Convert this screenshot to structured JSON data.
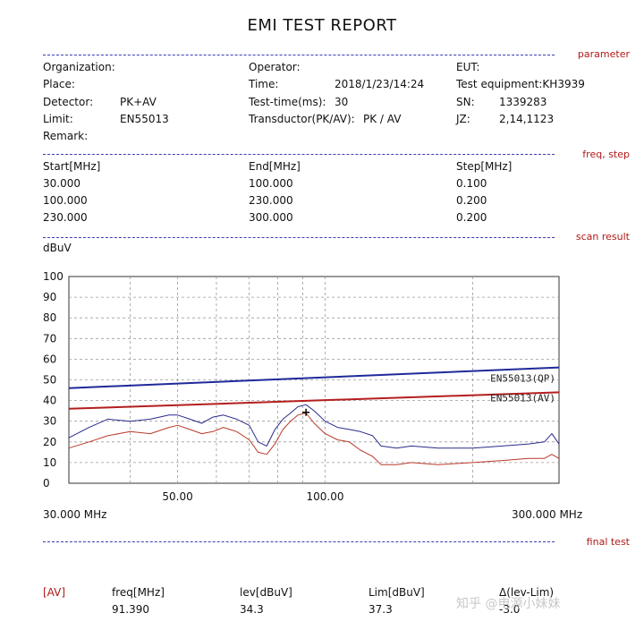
{
  "title": "EMI TEST REPORT",
  "sections": {
    "parameter": "parameter",
    "freq_step": "freq, step",
    "scan_result": "scan result",
    "final_test": "final test"
  },
  "params": {
    "organization_label": "Organization:",
    "place_label": "Place:",
    "detector_label": "Detector:",
    "detector_value": "PK+AV",
    "limit_label": "Limit:",
    "limit_value": "EN55013",
    "remark_label": "Remark:",
    "operator_label": "Operator:",
    "time_label": "Time:",
    "time_value": "2018/1/23/14:24",
    "testtime_label": "Test-time(ms):",
    "testtime_value": "30",
    "transductor_label": "Transductor(PK/AV):",
    "transductor_value": "PK  /  AV",
    "eut_label": "EUT:",
    "equipment_label": "Test equipment:KH3939",
    "sn_label": "SN:",
    "sn_value": "1339283",
    "jz_label": "JZ:",
    "jz_value": "2,14,1123"
  },
  "freq_table": {
    "headers": [
      "Start[MHz]",
      "End[MHz]",
      "Step[MHz]"
    ],
    "rows": [
      [
        "30.000",
        "100.000",
        "0.100"
      ],
      [
        "100.000",
        "230.000",
        "0.200"
      ],
      [
        "230.000",
        "300.000",
        "0.200"
      ]
    ]
  },
  "final": {
    "mode": "[AV]",
    "headers": [
      "freq[MHz]",
      "lev[dBuV]",
      "Lim[dBuV]",
      "Δ(lev-Lim)"
    ],
    "values": [
      "91.390",
      "34.3",
      "37.3",
      "-3.0"
    ]
  },
  "watermark": "知乎 @电源小妹妹",
  "colors": {
    "qp_limit": "#1f2a9a",
    "av_limit": "#b41e1e",
    "pk_trace": "#2a2a8c",
    "av_trace": "#b83a2a",
    "section": "#b01818"
  },
  "chart_data": {
    "type": "line",
    "ylabel": "dBuV",
    "x_scale": "log",
    "xlim": [
      30,
      300
    ],
    "ylim": [
      0,
      100
    ],
    "yticks": [
      0,
      10,
      20,
      30,
      40,
      50,
      60,
      70,
      80,
      90,
      100
    ],
    "xtick_labels": [
      {
        "x": 50,
        "label": "50.00"
      },
      {
        "x": 100,
        "label": "100.00"
      }
    ],
    "x_min_label": "30.000 MHz",
    "x_max_label": "300.000 MHz",
    "grid": true,
    "marker": {
      "x": 91.39,
      "y": 34.3,
      "symbol": "+"
    },
    "series": [
      {
        "name": "EN55013(QP)",
        "kind": "limit",
        "x": [
          30,
          300
        ],
        "y": [
          46.0,
          56.0
        ]
      },
      {
        "name": "EN55013(AV)",
        "kind": "limit",
        "x": [
          30,
          300
        ],
        "y": [
          36.0,
          44.0
        ]
      },
      {
        "kind": "peak",
        "x": [
          30,
          33,
          36,
          40,
          44,
          48,
          50,
          53,
          56,
          59,
          62,
          66,
          70,
          73,
          76,
          79,
          82,
          85,
          88,
          91.4,
          95,
          100,
          106,
          112,
          118,
          125,
          130,
          140,
          150,
          170,
          200,
          230,
          260,
          280,
          290,
          300
        ],
        "y": [
          22,
          27,
          31,
          30,
          31,
          33,
          33,
          31,
          29,
          32,
          33,
          31,
          28,
          20,
          18,
          26,
          31,
          34,
          37,
          38,
          35,
          30,
          27,
          26,
          25,
          23,
          18,
          17,
          18,
          17,
          17,
          18,
          19,
          20,
          24,
          19
        ]
      },
      {
        "kind": "average",
        "x": [
          30,
          33,
          36,
          40,
          44,
          48,
          50,
          53,
          56,
          59,
          62,
          66,
          70,
          73,
          76,
          79,
          82,
          85,
          88,
          91.4,
          95,
          100,
          106,
          112,
          118,
          125,
          130,
          140,
          150,
          170,
          200,
          230,
          260,
          280,
          290,
          300
        ],
        "y": [
          17,
          20,
          23,
          25,
          24,
          27,
          28,
          26,
          24,
          25,
          27,
          25,
          21,
          15,
          14,
          19,
          26,
          30,
          33,
          34,
          29,
          24,
          21,
          20,
          16,
          13,
          9,
          9,
          10,
          9,
          10,
          11,
          12,
          12,
          14,
          12
        ]
      }
    ]
  }
}
